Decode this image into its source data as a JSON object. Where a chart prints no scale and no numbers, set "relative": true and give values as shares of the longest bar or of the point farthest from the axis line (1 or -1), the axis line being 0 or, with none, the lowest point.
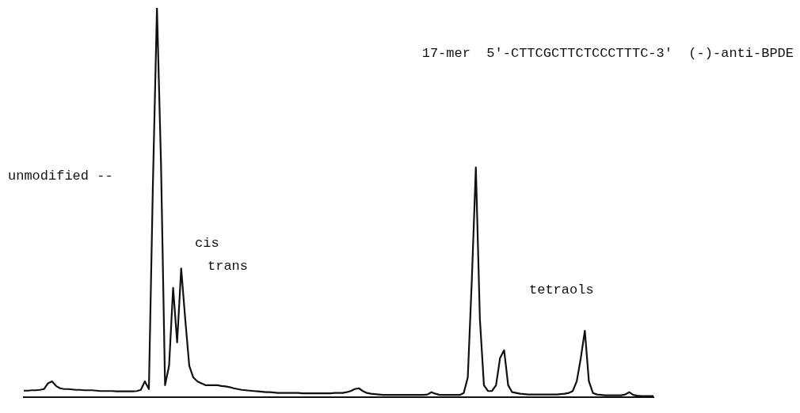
{
  "chart_data": {
    "type": "line",
    "relative": true,
    "title": "17-mer  5'-CTTCGCTTCTCCCTTTC-3'  (-)-anti-BPDE",
    "annotations": [
      "unmodified --",
      "cis",
      "trans",
      "tetraols"
    ],
    "color": "#111111",
    "grid": false,
    "legend": false,
    "marker": "none",
    "line_style": "solid",
    "categories": [
      null,
      null,
      null,
      null,
      null,
      null,
      null,
      null,
      null,
      null,
      null,
      null,
      null,
      null,
      null,
      null,
      null,
      null,
      null,
      null,
      null,
      null,
      null,
      null,
      null,
      null,
      null,
      null,
      null,
      null,
      null,
      null,
      null,
      null,
      null,
      null,
      null,
      null,
      null,
      null,
      null,
      null,
      null,
      null,
      null,
      null,
      null,
      null,
      null,
      null,
      null,
      null,
      null,
      null,
      null,
      null,
      null,
      null,
      null,
      null,
      null,
      null,
      null,
      null,
      null,
      null,
      null,
      null,
      null,
      null,
      null,
      null,
      null,
      null,
      null,
      null,
      null,
      null,
      null,
      null,
      null,
      null,
      null,
      null,
      null,
      null,
      null,
      null,
      null,
      null,
      null,
      null,
      null,
      null,
      null,
      null,
      null,
      null,
      null,
      null,
      null,
      null,
      null,
      null,
      null,
      null,
      null,
      null,
      null,
      null,
      null,
      null,
      null,
      null,
      null,
      null,
      null,
      null,
      null,
      null,
      null,
      null,
      null,
      null,
      null,
      null,
      null,
      null,
      null,
      null,
      null,
      null,
      null,
      null,
      null,
      null,
      null,
      null,
      null,
      null,
      null,
      null,
      null,
      null,
      null,
      null,
      null,
      null,
      null,
      null,
      null,
      null,
      null,
      null,
      null,
      null,
      null
    ],
    "values": [
      0.016,
      0.016,
      0.017,
      0.017,
      0.018,
      0.02,
      0.035,
      0.04,
      0.028,
      0.022,
      0.02,
      0.02,
      0.019,
      0.018,
      0.018,
      0.017,
      0.017,
      0.017,
      0.016,
      0.015,
      0.015,
      0.015,
      0.015,
      0.014,
      0.014,
      0.014,
      0.014,
      0.014,
      0.015,
      0.018,
      0.04,
      0.02,
      0.55,
      1,
      0.6,
      0.03,
      0.08,
      0.28,
      0.14,
      0.33,
      0.2,
      0.08,
      0.05,
      0.04,
      0.035,
      0.03,
      0.03,
      0.03,
      0.03,
      0.028,
      0.027,
      0.025,
      0.022,
      0.02,
      0.018,
      0.017,
      0.016,
      0.015,
      0.014,
      0.013,
      0.012,
      0.012,
      0.011,
      0.01,
      0.01,
      0.01,
      0.01,
      0.01,
      0.01,
      0.009,
      0.009,
      0.009,
      0.009,
      0.009,
      0.009,
      0.009,
      0.009,
      0.01,
      0.01,
      0.01,
      0.012,
      0.015,
      0.02,
      0.022,
      0.015,
      0.01,
      0.008,
      0.007,
      0.006,
      0.005,
      0.005,
      0.005,
      0.005,
      0.005,
      0.005,
      0.005,
      0.005,
      0.005,
      0.005,
      0.005,
      0.006,
      0.012,
      0.008,
      0.005,
      0.005,
      0.005,
      0.005,
      0.005,
      0.005,
      0.01,
      0.05,
      0.3,
      0.59,
      0.2,
      0.03,
      0.015,
      0.015,
      0.03,
      0.1,
      0.12,
      0.03,
      0.012,
      0.01,
      0.008,
      0.007,
      0.006,
      0.006,
      0.006,
      0.006,
      0.006,
      0.006,
      0.006,
      0.006,
      0.007,
      0.008,
      0.01,
      0.015,
      0.04,
      0.1,
      0.17,
      0.04,
      0.01,
      0.006,
      0.005,
      0.004,
      0.004,
      0.004,
      0.004,
      0.004,
      0.006,
      0.012,
      0.005,
      0.003,
      0.002,
      0.002,
      0.002,
      0.002
    ]
  }
}
